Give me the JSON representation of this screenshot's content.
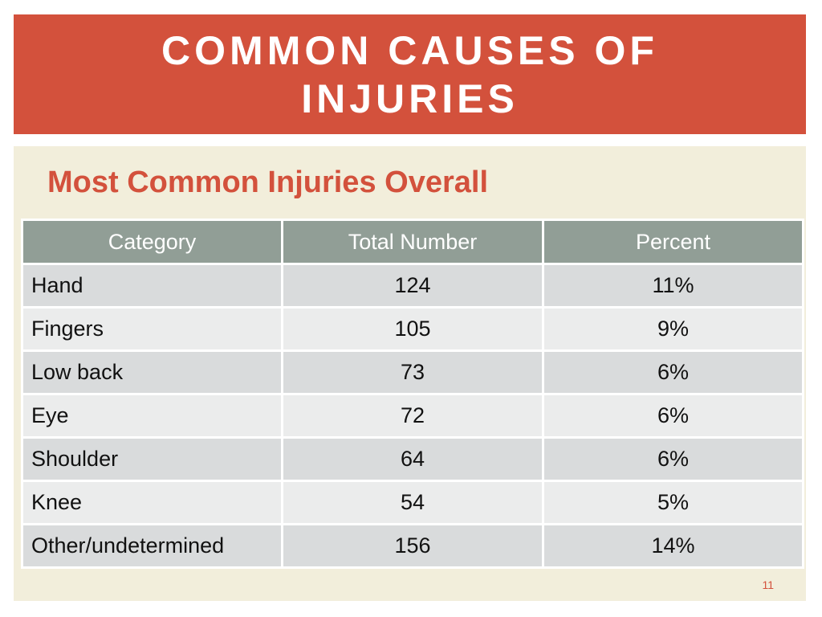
{
  "slide": {
    "title": "COMMON CAUSES OF INJURIES",
    "subtitle": "Most Common Injuries Overall",
    "page_number": "11"
  },
  "table": {
    "headers": [
      "Category",
      "Total Number",
      "Percent"
    ],
    "rows": [
      {
        "category": "Hand",
        "total": "124",
        "percent": "11%"
      },
      {
        "category": "Fingers",
        "total": "105",
        "percent": "9%"
      },
      {
        "category": "Low back",
        "total": "73",
        "percent": "6%"
      },
      {
        "category": "Eye",
        "total": "72",
        "percent": "6%"
      },
      {
        "category": "Shoulder",
        "total": "64",
        "percent": "6%"
      },
      {
        "category": "Knee",
        "total": "54",
        "percent": "5%"
      },
      {
        "category": "Other/undetermined",
        "total": "156",
        "percent": "14%"
      }
    ]
  },
  "colors": {
    "accent": "#d3513c",
    "content_background": "#f2eedb",
    "header_fill": "#919e96",
    "row_dark": "#d9dbdc",
    "row_light": "#ebecec"
  }
}
